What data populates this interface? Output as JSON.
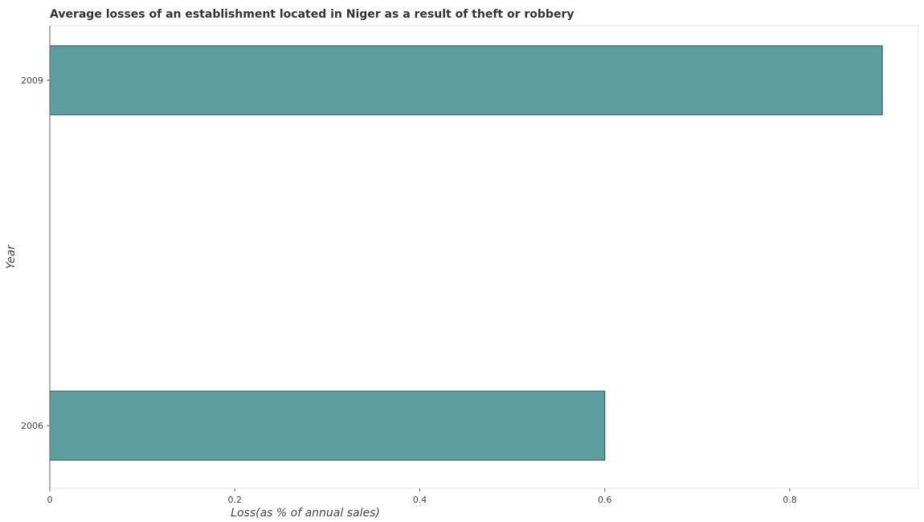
{
  "chart_data": {
    "type": "bar",
    "orientation": "horizontal",
    "title": "Average losses of an establishment located in Niger as a result of theft or robbery",
    "xlabel": "Loss(as % of annual sales)",
    "ylabel": "Year",
    "categories": [
      "2006",
      "2009"
    ],
    "values": [
      0.6,
      0.9
    ],
    "xlim": [
      0,
      0.95
    ],
    "xticks": [
      0,
      0.2,
      0.4,
      0.6,
      0.8
    ],
    "xtick_labels": [
      "0",
      "0.2",
      "0.4",
      "0.6",
      "0.8"
    ],
    "grid": false,
    "legend": "none",
    "bar_color": "#5f9ea0"
  }
}
